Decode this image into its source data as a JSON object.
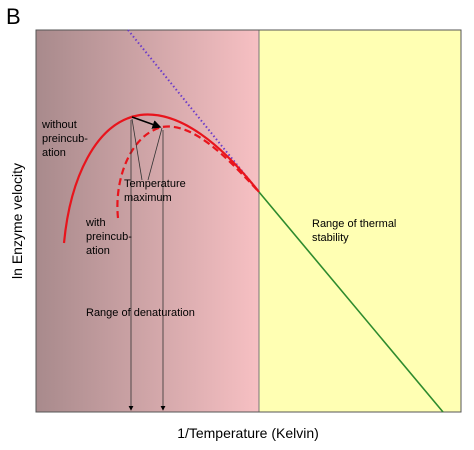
{
  "panel_letter": "B",
  "chart_data": {
    "type": "line",
    "title": "",
    "xlabel": "1/Temperature (Kelvin)",
    "ylabel": "ln Enzyme velocity",
    "regions": [
      {
        "name": "denaturation",
        "label": "Range of denaturation",
        "color": "#f7c0c3",
        "gradient_from": "#a88a8c"
      },
      {
        "name": "thermal_stability",
        "label_lines": [
          "Range of thermal",
          "stability"
        ],
        "color": "#ffffb3"
      }
    ],
    "annotations": {
      "without_preincubation": [
        "without",
        "preincub-",
        "ation"
      ],
      "with_preincubation": [
        "with",
        "preincub-",
        "ation"
      ],
      "temperature_maximum": [
        "Temperature",
        "maximum"
      ]
    },
    "series": [
      {
        "key": "without",
        "style": "solid",
        "color": "#e8141c"
      },
      {
        "key": "with",
        "style": "dashed",
        "color": "#e8141c"
      },
      {
        "key": "stable",
        "style": "solid",
        "color": "#2e8b2e"
      },
      {
        "key": "extrapolation",
        "style": "dotted",
        "color": "#6a3cc9"
      }
    ]
  }
}
